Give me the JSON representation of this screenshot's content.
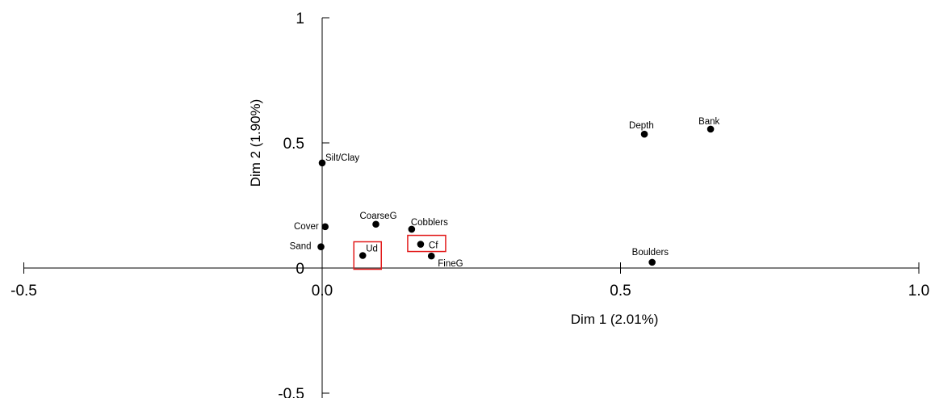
{
  "chart_data": {
    "type": "scatter",
    "title": "",
    "xlabel": "Dim 1 (2.01%)",
    "ylabel": "Dim 2 (1.90%)",
    "xlim": [
      -0.5,
      1.0
    ],
    "ylim": [
      -0.5,
      1.0
    ],
    "x_ticks": [
      -0.5,
      0.5,
      1.0
    ],
    "x_tick_labels": [
      "-0.5",
      "0.5",
      "1.0"
    ],
    "x_zero_label": "0.0",
    "y_ticks": [
      -0.5,
      0.5,
      1.0
    ],
    "y_tick_labels": [
      "-0.5",
      "0.5",
      "1"
    ],
    "y_zero_label": "0",
    "grid": false,
    "points": [
      {
        "label": "Silt/Clay",
        "x": 0.0,
        "y": 0.42
      },
      {
        "label": "Cover",
        "x": 0.005,
        "y": 0.165
      },
      {
        "label": "Sand",
        "x": -0.002,
        "y": 0.085
      },
      {
        "label": "CoarseG",
        "x": 0.09,
        "y": 0.175
      },
      {
        "label": "Cobblers",
        "x": 0.15,
        "y": 0.155
      },
      {
        "label": "Ud",
        "x": 0.068,
        "y": 0.05
      },
      {
        "label": "Cf",
        "x": 0.165,
        "y": 0.095
      },
      {
        "label": "FineG",
        "x": 0.183,
        "y": 0.048
      },
      {
        "label": "Depth",
        "x": 0.54,
        "y": 0.535
      },
      {
        "label": "Bank",
        "x": 0.651,
        "y": 0.555
      },
      {
        "label": "Boulders",
        "x": 0.553,
        "y": 0.023
      }
    ],
    "highlighted": [
      "Ud",
      "Cf"
    ],
    "highlight_color": "#e21b1b"
  }
}
